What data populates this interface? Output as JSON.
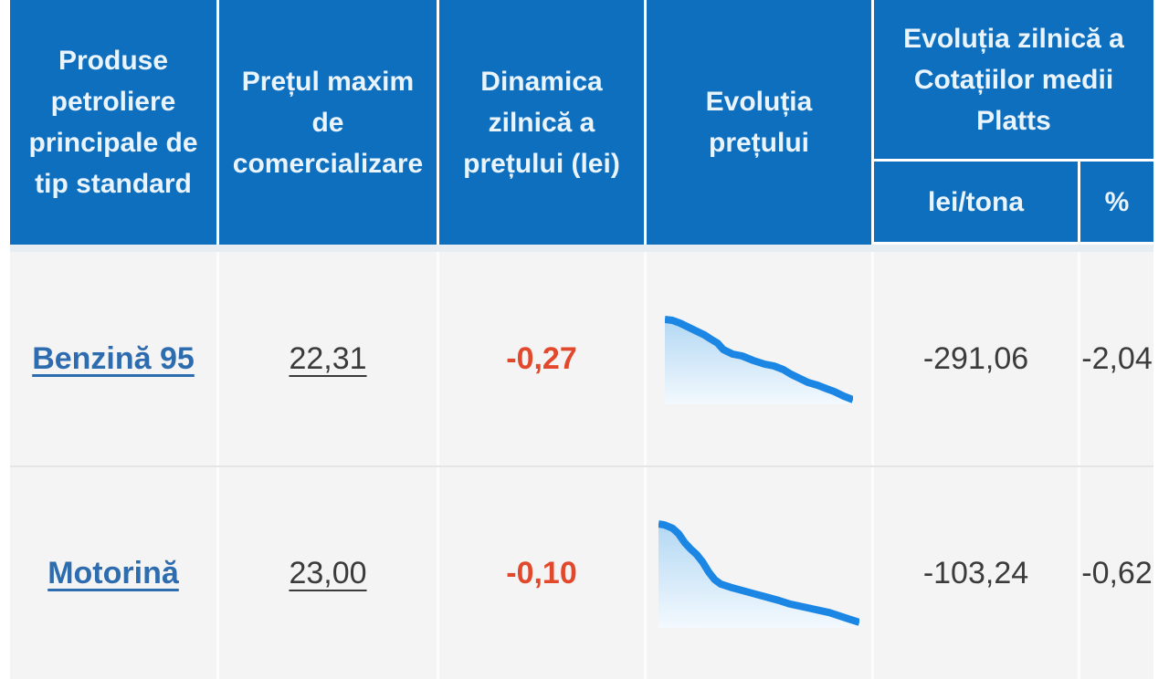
{
  "table": {
    "headers": [
      {
        "label": "Produse petroliere principale de tip standard"
      },
      {
        "label": "Prețul maxim de comercializare"
      },
      {
        "label": "Dinamica zilnică a prețului (lei)"
      },
      {
        "label": "Evoluția prețului"
      }
    ],
    "platts": {
      "title": "Evoluția zilnică a Cotațiilor medii Platts",
      "sub_lei": "lei/tona",
      "sub_pct": "%"
    },
    "rows": [
      {
        "product": "Benzină 95",
        "max_price": "22,31",
        "daily_change_lei": "-0,27",
        "platts_lei_tona": "-291,06",
        "platts_pct": "-2,04",
        "spark": [
          [
            0,
            7
          ],
          [
            4,
            8
          ],
          [
            8,
            11
          ],
          [
            12,
            15
          ],
          [
            17,
            20
          ],
          [
            21,
            24
          ],
          [
            24,
            28
          ],
          [
            28,
            33
          ],
          [
            31,
            40
          ],
          [
            36,
            45
          ],
          [
            41,
            47
          ],
          [
            47,
            52
          ],
          [
            53,
            56
          ],
          [
            58,
            58
          ],
          [
            63,
            62
          ],
          [
            67,
            67
          ],
          [
            71,
            71
          ],
          [
            76,
            76
          ],
          [
            81,
            79
          ],
          [
            86,
            83
          ],
          [
            90,
            86
          ],
          [
            95,
            91
          ],
          [
            100,
            95
          ]
        ]
      },
      {
        "product": "Motorină",
        "max_price": "23,00",
        "daily_change_lei": "-0,10",
        "platts_lei_tona": "-103,24",
        "platts_pct": "-0,62",
        "spark": [
          [
            0,
            5
          ],
          [
            3,
            6
          ],
          [
            7,
            9
          ],
          [
            10,
            14
          ],
          [
            13,
            22
          ],
          [
            16,
            28
          ],
          [
            19,
            33
          ],
          [
            22,
            40
          ],
          [
            25,
            49
          ],
          [
            28,
            56
          ],
          [
            31,
            60
          ],
          [
            36,
            63
          ],
          [
            42,
            66
          ],
          [
            48,
            69
          ],
          [
            54,
            72
          ],
          [
            60,
            75
          ],
          [
            65,
            78
          ],
          [
            70,
            80
          ],
          [
            75,
            82
          ],
          [
            80,
            84
          ],
          [
            85,
            86
          ],
          [
            90,
            89
          ],
          [
            95,
            92
          ],
          [
            100,
            95
          ]
        ]
      }
    ]
  },
  "colors": {
    "header_bg": "#0e6fbe",
    "header_text": "#eaf4fd",
    "body_bg": "#f5f4f5",
    "link_blue": "#2d6cae",
    "value_text": "#3b3b3b",
    "negative_red": "#e2492c",
    "spark_line": "#1b86e3",
    "spark_fill_top": "#b3d8f3",
    "spark_fill_bottom": "#f3f9fe"
  }
}
